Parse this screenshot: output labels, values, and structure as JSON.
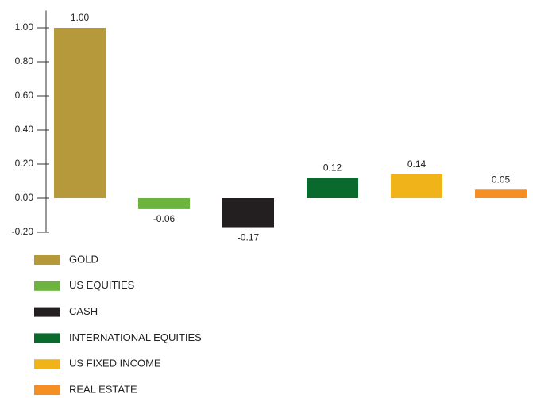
{
  "chart_data": {
    "type": "bar",
    "categories": [
      "GOLD",
      "US EQUITIES",
      "CASH",
      "INTERNATIONAL EQUITIES",
      "US FIXED INCOME",
      "REAL ESTATE"
    ],
    "values": [
      1.0,
      -0.06,
      -0.17,
      0.12,
      0.14,
      0.05
    ],
    "value_labels": [
      "1.00",
      "-0.06",
      "-0.17",
      "0.12",
      "0.14",
      "0.05"
    ],
    "colors": [
      "#b5993a",
      "#6cb33f",
      "#231f20",
      "#0a6a2e",
      "#f0b31a",
      "#f58f24"
    ],
    "ylim": [
      -0.2,
      1.1
    ],
    "yticks": [
      {
        "value": -0.2,
        "label": "-0.20"
      },
      {
        "value": 0,
        "label": "0.00"
      },
      {
        "value": 0.2,
        "label": "0.20"
      },
      {
        "value": 0.4,
        "label": "0.40"
      },
      {
        "value": 0.6,
        "label": "0.60"
      },
      {
        "value": 0.8,
        "label": "0.80"
      },
      {
        "value": 1.0,
        "label": "1.00"
      }
    ],
    "legend": "bottom-left"
  }
}
